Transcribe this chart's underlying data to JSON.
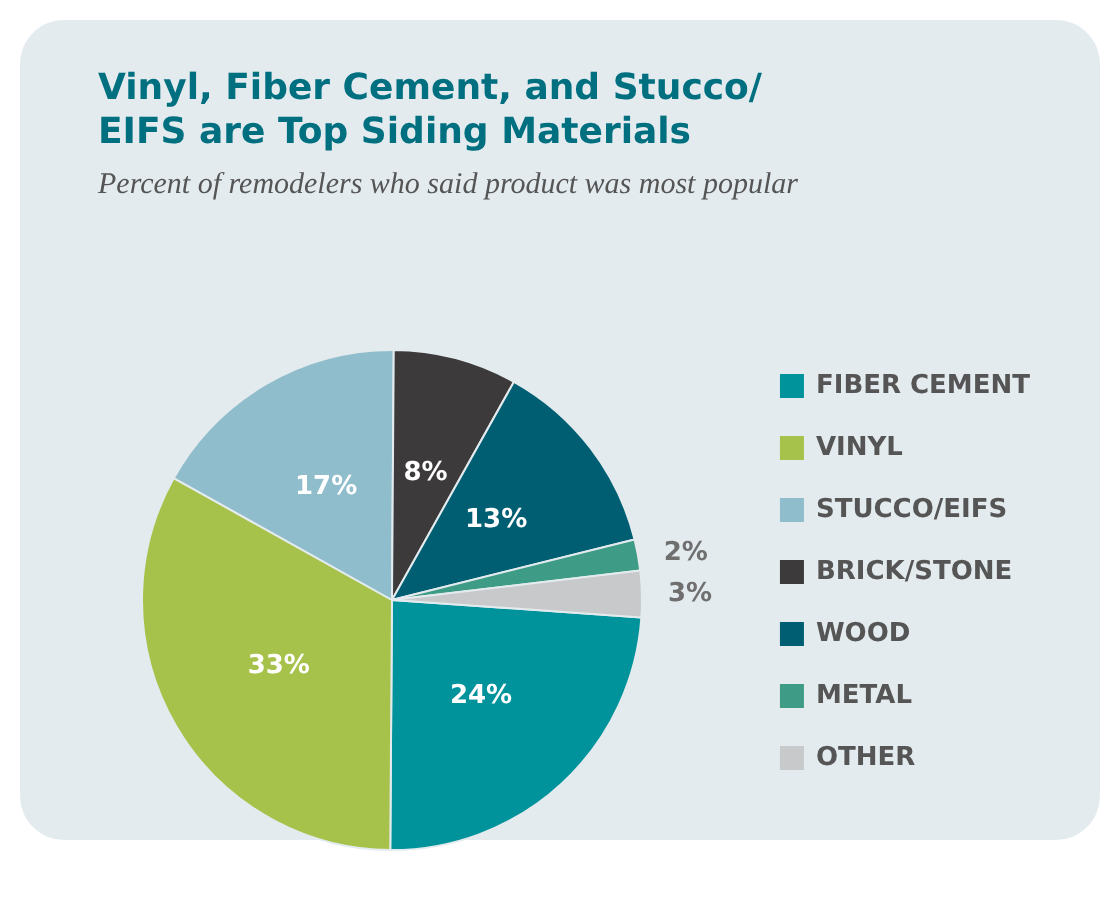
{
  "chart_data": {
    "type": "pie",
    "title": "Vinyl, Fiber Cement, and Stucco/\nEIFS are Top Siding Materials",
    "subtitle": "Percent of remodelers who said product was most popular",
    "categories": [
      "FIBER CEMENT",
      "VINYL",
      "STUCCO/EIFS",
      "BRICK/STONE",
      "WOOD",
      "METAL",
      "OTHER"
    ],
    "values": [
      24,
      33,
      17,
      8,
      13,
      2,
      3
    ],
    "colors": [
      "#00939b",
      "#a7c24b",
      "#90bdcc",
      "#3d3a3b",
      "#005e73",
      "#3e9b86",
      "#c8c9ca"
    ],
    "value_labels": [
      "24%",
      "33%",
      "17%",
      "8%",
      "13%",
      "2%",
      "3%"
    ],
    "legend": "right"
  }
}
